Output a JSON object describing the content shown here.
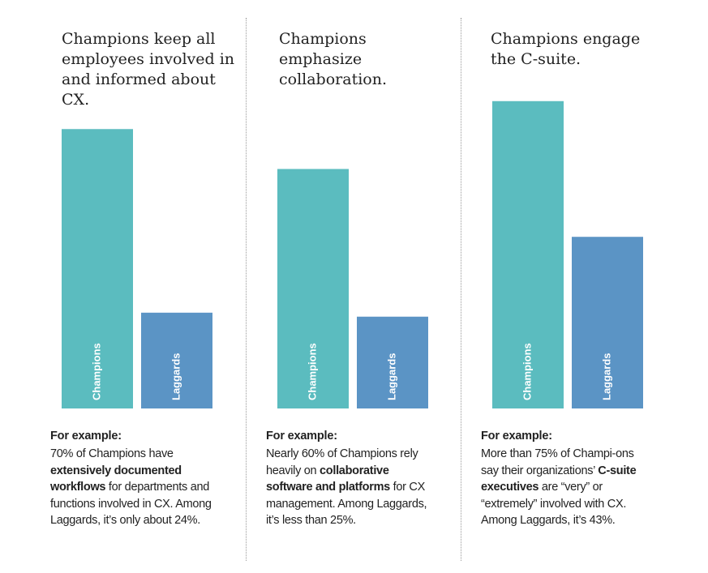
{
  "colors": {
    "champions": "#5bbcbf",
    "laggards": "#5b94c5",
    "label": "#ffffff"
  },
  "chart_data": [
    {
      "type": "bar",
      "title": "Champions keep all employees involved in and informed about CX.",
      "categories": [
        "Champions",
        "Laggards"
      ],
      "values": [
        70,
        24
      ],
      "ylim": [
        0,
        80
      ]
    },
    {
      "type": "bar",
      "title": "Champions emphasize collaboration.",
      "categories": [
        "Champions",
        "Laggards"
      ],
      "values": [
        60,
        23
      ],
      "ylim": [
        0,
        80
      ]
    },
    {
      "type": "bar",
      "title": "Champions engage the C-suite.",
      "categories": [
        "Champions",
        "Laggards"
      ],
      "values": [
        77,
        43
      ],
      "ylim": [
        0,
        80
      ]
    }
  ],
  "examples": [
    {
      "label": "For example:",
      "before": "70% of Champions have ",
      "bold": "extensively documented workflows",
      "after": " for departments and functions involved in CX. Among Laggards, it’s only about 24%."
    },
    {
      "label": "For example:",
      "before": "Nearly 60% of Champions rely heavily on ",
      "bold": "collaborative software and platforms",
      "after": " for CX management. Among Laggards, it’s less than 25%."
    },
    {
      "label": "For example:",
      "before": "More than 75% of Champi-ons say their organizations’ ",
      "bold": "C-suite executives",
      "after": " are “very” or “extremely” involved with CX. Among Laggards, it’s 43%."
    }
  ]
}
